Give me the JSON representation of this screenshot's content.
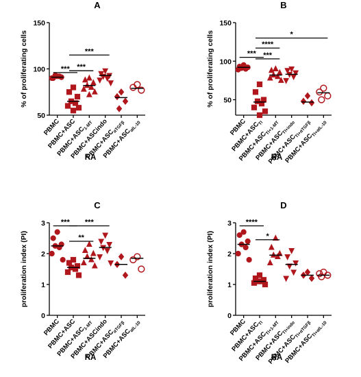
{
  "chart_data": [
    {
      "type": "strip",
      "title": "A",
      "ylabel": "% of proliferating cells",
      "xlabel": "RA",
      "color": "#b0171c",
      "categories": [
        {
          "text": "PBMC"
        },
        {
          "text": "PBMC+ASC"
        },
        {
          "text": "PBMC+ASC",
          "sub": "1-MT"
        },
        {
          "text": "PBMC+ASCindo"
        },
        {
          "text": "PBMC+ASC",
          "sub": "αTGFβ"
        },
        {
          "text": "PBMC+ASC",
          "sub": "αIL-10"
        }
      ],
      "markers": [
        "circle",
        "square",
        "triangle",
        "triangle-down",
        "diamond",
        "open-circle"
      ],
      "values": [
        [
          92,
          90,
          91,
          93,
          92,
          90
        ],
        [
          80,
          75,
          70,
          65,
          63,
          60,
          58,
          55
        ],
        [
          90,
          88,
          85,
          82,
          80,
          78,
          75,
          72
        ],
        [
          98,
          95,
          93,
          92,
          90,
          88,
          85
        ],
        [
          75,
          70,
          65,
          57
        ],
        [
          83,
          80,
          77
        ]
      ],
      "medians": [
        91,
        65,
        82,
        93,
        69,
        79
      ],
      "ylim": [
        50,
        150
      ],
      "yticks": [
        50,
        100,
        150
      ],
      "significance": [
        {
          "from": 0,
          "to": 1,
          "y": 96,
          "label": "***"
        },
        {
          "from": 1,
          "to": 2,
          "y": 98,
          "label": "***"
        },
        {
          "from": 1,
          "to": 3,
          "y": 115,
          "label": "***"
        }
      ]
    },
    {
      "type": "strip",
      "title": "B",
      "ylabel": "% of proliferating cells",
      "xlabel": "RA",
      "color": "#b0171c",
      "categories": [
        {
          "text": "PBMC"
        },
        {
          "text": "PBMC+ASC",
          "sub": "TI"
        },
        {
          "text": "PBMC+ASC",
          "sub": "TI+1-MT"
        },
        {
          "text": "PBMC+ASC",
          "sub": "TI+indo"
        },
        {
          "text": "PBMC+ASC",
          "sub": "TI+αTGFβ"
        },
        {
          "text": "PBMC+ASC",
          "sub": "TI+αIL-10"
        }
      ],
      "markers": [
        "circle",
        "square",
        "triangle",
        "triangle-down",
        "diamond",
        "open-circle"
      ],
      "values": [
        [
          95,
          93,
          92,
          91,
          90,
          89
        ],
        [
          70,
          60,
          50,
          48,
          45,
          40,
          35,
          30
        ],
        [
          90,
          88,
          85,
          82,
          80,
          78,
          75
        ],
        [
          90,
          88,
          85,
          83,
          80,
          75
        ],
        [
          55,
          48,
          46
        ],
        [
          65,
          60,
          55,
          50
        ]
      ],
      "medians": [
        92,
        47,
        82,
        83,
        47,
        59
      ],
      "ylim": [
        30,
        150
      ],
      "yticks": [
        50,
        100,
        150
      ],
      "significance": [
        {
          "from": 0,
          "to": 1,
          "y": 105,
          "label": "***"
        },
        {
          "from": 1,
          "to": 2,
          "y": 103,
          "label": "***"
        },
        {
          "from": 1,
          "to": 2,
          "y": 117,
          "label": "****"
        },
        {
          "from": 1,
          "to": 5,
          "y": 130,
          "label": "*"
        }
      ]
    },
    {
      "type": "strip",
      "title": "C",
      "ylabel": "proliferation index (PI)",
      "xlabel": "RA",
      "color": "#b0171c",
      "categories": [
        {
          "text": "PBMC"
        },
        {
          "text": "PBMC+ASC"
        },
        {
          "text": "PBMC+ASC",
          "sub": "1-MT"
        },
        {
          "text": "PBMC+ASCindo"
        },
        {
          "text": "PBMC+ASC",
          "sub": "αTGFβ"
        },
        {
          "text": "PBMC+ASC",
          "sub": "αIL-10"
        }
      ],
      "markers": [
        "circle",
        "square",
        "triangle",
        "triangle-down",
        "diamond",
        "open-circle"
      ],
      "values": [
        [
          2.7,
          2.5,
          2.3,
          2.25,
          2.2,
          2.0,
          1.8
        ],
        [
          1.8,
          1.7,
          1.6,
          1.55,
          1.5,
          1.4,
          1.3
        ],
        [
          2.3,
          2.1,
          2.0,
          1.9,
          1.8,
          1.7,
          1.6
        ],
        [
          2.6,
          2.4,
          2.3,
          2.2,
          2.1,
          1.9,
          1.7
        ],
        [
          1.9,
          1.65,
          1.3
        ],
        [
          1.9,
          1.8,
          1.5
        ]
      ],
      "medians": [
        2.25,
        1.55,
        1.85,
        2.2,
        1.65,
        1.85
      ],
      "ylim": [
        0,
        3
      ],
      "yticks": [
        0,
        1,
        2,
        3
      ],
      "significance": [
        {
          "from": 0,
          "to": 1,
          "y": 2.9,
          "label": "***"
        },
        {
          "from": 1,
          "to": 2,
          "y": 2.4,
          "label": "**"
        },
        {
          "from": 1,
          "to": 3,
          "y": 2.9,
          "label": "***"
        }
      ]
    },
    {
      "type": "strip",
      "title": "D",
      "ylabel": "proliferation index (PI)",
      "xlabel": "RA",
      "color": "#b0171c",
      "categories": [
        {
          "text": "PBMC"
        },
        {
          "text": "PBMC+ASC",
          "sub": "TI"
        },
        {
          "text": "PBMC+ASC",
          "sub": "TI+1-MT"
        },
        {
          "text": "PBMC+ASC",
          "sub": "TI+indo"
        },
        {
          "text": "PBMC+ASC",
          "sub": "TI+αTGFβ"
        },
        {
          "text": "PBMC+ASC",
          "sub": "TI+αIL-10"
        }
      ],
      "markers": [
        "circle",
        "square",
        "triangle",
        "triangle-down",
        "diamond",
        "open-circle"
      ],
      "values": [
        [
          2.7,
          2.6,
          2.4,
          2.3,
          2.2,
          2.0,
          1.8
        ],
        [
          1.3,
          1.2,
          1.15,
          1.1,
          1.1,
          1.05,
          1.0
        ],
        [
          2.5,
          2.2,
          2.0,
          1.95,
          1.9,
          1.7
        ],
        [
          2.1,
          1.9,
          1.7,
          1.6,
          1.4,
          1.2
        ],
        [
          1.4,
          1.3,
          1.2
        ],
        [
          1.4,
          1.35,
          1.3,
          1.25
        ]
      ],
      "medians": [
        2.3,
        1.1,
        1.95,
        1.65,
        1.3,
        1.3
      ],
      "ylim": [
        0,
        3
      ],
      "yticks": [
        0,
        1,
        2,
        3
      ],
      "significance": [
        {
          "from": 0,
          "to": 1,
          "y": 2.9,
          "label": "****"
        },
        {
          "from": 1,
          "to": 2,
          "y": 2.45,
          "label": "*"
        }
      ]
    }
  ]
}
